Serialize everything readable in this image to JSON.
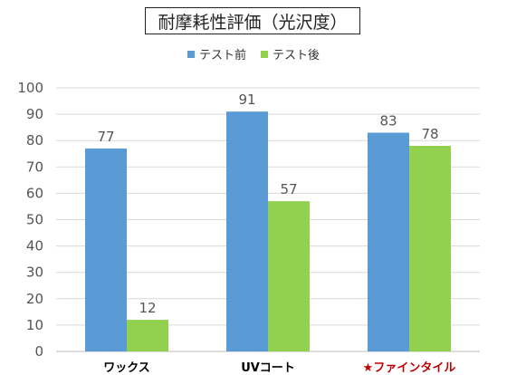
{
  "chart_data": {
    "type": "bar",
    "title": "耐摩耗性評価（光沢度）",
    "categories": [
      "ワックス",
      "UVコート",
      "★ファインタイル"
    ],
    "category_colors": [
      "#000000",
      "#000000",
      "#c00000"
    ],
    "series": [
      {
        "name": "テスト前",
        "color": "#5b9bd5",
        "values": [
          77,
          91,
          83
        ]
      },
      {
        "name": "テスト後",
        "color": "#92d050",
        "values": [
          12,
          57,
          78
        ]
      }
    ],
    "ylim": [
      0,
      100
    ],
    "yticks": [
      0,
      10,
      20,
      30,
      40,
      50,
      60,
      70,
      80,
      90,
      100
    ],
    "grid": true,
    "legend_position": "top"
  }
}
